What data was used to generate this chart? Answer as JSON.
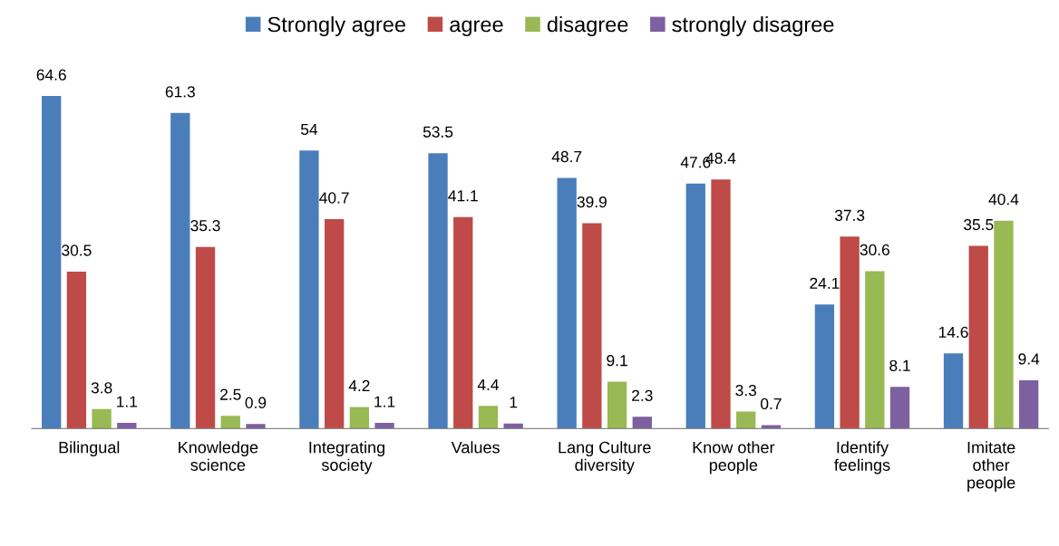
{
  "chart_data": {
    "type": "bar",
    "categories": [
      "Bilingual",
      "Knowledge\nscience",
      "Integrating\nsociety",
      "Values",
      "Lang Culture\ndiversity",
      "Know other\npeople",
      "Identify\nfeelings",
      "Imitate\nother\npeople"
    ],
    "series": [
      {
        "name": "Strongly agree",
        "color": "#4a7ebb",
        "values": [
          64.6,
          61.3,
          54,
          53.5,
          48.7,
          47.6,
          24.1,
          14.6
        ]
      },
      {
        "name": "agree",
        "color": "#be4b48",
        "values": [
          30.5,
          35.3,
          40.7,
          41.1,
          39.9,
          48.4,
          37.3,
          35.5
        ]
      },
      {
        "name": "disagree",
        "color": "#98b954",
        "values": [
          3.8,
          2.5,
          4.2,
          4.4,
          9.1,
          3.3,
          30.6,
          40.4
        ]
      },
      {
        "name": "strongly disagree",
        "color": "#7d60a0",
        "values": [
          1.1,
          0.9,
          1.1,
          1,
          2.3,
          0.7,
          8.1,
          9.4
        ]
      }
    ],
    "data_labels": true,
    "legend": "top",
    "grid": false
  }
}
